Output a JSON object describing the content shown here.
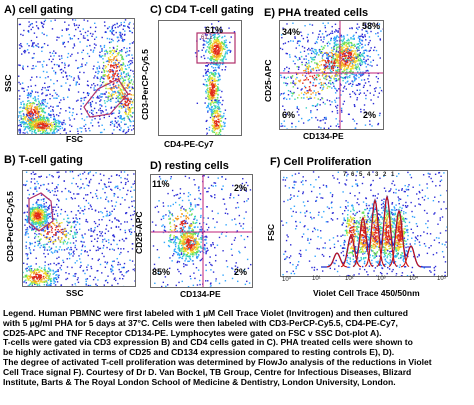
{
  "panels": {
    "a": {
      "title": "A) cell gating",
      "ylabel": "SSC",
      "xlabel": "FSC"
    },
    "b": {
      "title": "B) T-cell gating",
      "ylabel": "CD3-PerCP-Cy5.5",
      "xlabel": "SSC"
    },
    "c": {
      "title": "C) CD4  T-cell gating",
      "ylabel": "CD3-PerCP-Cy5.5",
      "xlabel": "CD4-PE-Cy7",
      "gate_pct": "61%",
      "gate_label": "61.2"
    },
    "d": {
      "title": "D) resting cells",
      "ylabel": "CD25-APC",
      "xlabel": "CD134-PE",
      "q_ul": "11%",
      "q_ur": "2%",
      "q_ll": "85%",
      "q_lr": "2%"
    },
    "e": {
      "title": "E) PHA treated cells",
      "ylabel": "CD25-APC",
      "xlabel": "CD134-PE",
      "q_ul": "34%",
      "q_ur": "58%",
      "q_ll": "6%",
      "q_lr": "2%"
    },
    "f": {
      "title": "F) Cell Proliferation",
      "ylabel": "FSC",
      "xlabel": "Violet Cell Trace 450/50nm",
      "ticks": [
        "10⁰",
        "10¹",
        "10²",
        "10³",
        "10⁴",
        "10⁵"
      ],
      "peak_labels": "7 6 5 4 3 2 1"
    }
  },
  "legend_lines": [
    "Legend. Human PBMNC were first labeled with 1 µM Cell Trace Violet (Invitrogen) and then cultured",
    "with 5 µg/ml PHA for 5 days at 37°C. Cells were then labeled with CD3-PerCP-Cy5.5, CD4-PE-Cy7,",
    "CD25-APC and TNF Receptor CD134-PE. Lymphocytes were gated on FSC v SSC Dot-plot A).",
    "T-cells were gated via CD3 expression B) and CD4 cells gated in C). PHA treated cells were shown to",
    "be highly activated in terms of CD25 and CD134 expression compared to resting controls E), D).",
    "The  degree of activated T-cell proliferation was determined by FlowJo analysis of  the reductions in Violet",
    "Cell Trace signal F). Courtesy of Dr D. Van Bockel, TB Group, Centre for Infectious Diseases, Blizard",
    "Institute, Barts & The Royal London School of Medicine & Dentistry, London University, London."
  ],
  "colors": {
    "gate": "#b0306a",
    "quadrant": "#c0207a",
    "fit_blue": "#1a2fd0",
    "fit_red": "#c81010"
  }
}
